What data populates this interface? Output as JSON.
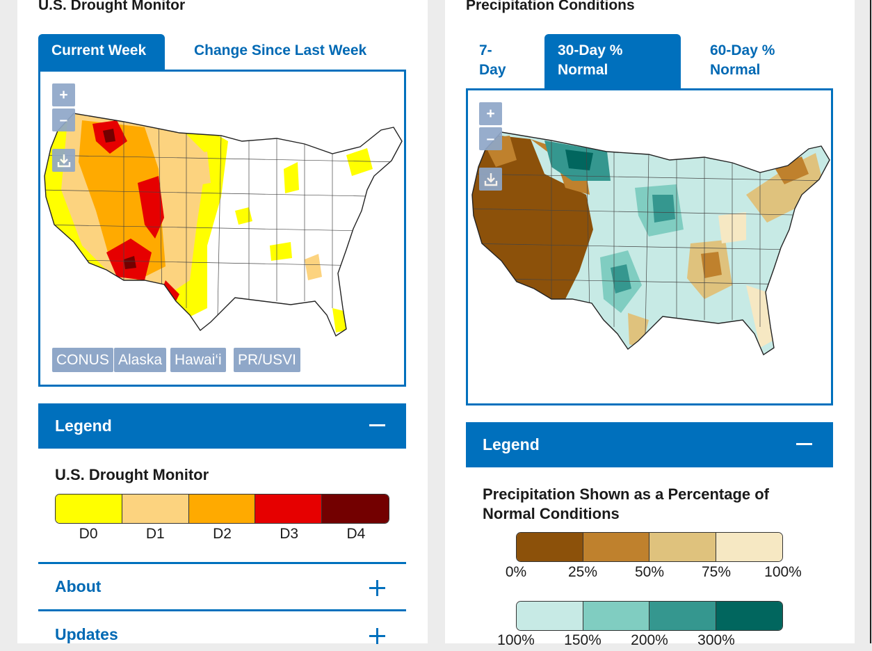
{
  "drought_panel": {
    "title": "U.S. Drought Monitor",
    "tabs": [
      {
        "label": "Current Week",
        "active": true
      },
      {
        "label": "Change Since Last Week",
        "active": false
      }
    ],
    "map_controls": {
      "zoom_in": "+",
      "zoom_out": "–"
    },
    "region_buttons": [
      "CONUS",
      "Alaska",
      "Hawai‘i",
      "PR/USVI"
    ],
    "legend": {
      "header": "Legend",
      "title": "U.S. Drought Monitor",
      "categories": [
        {
          "label": "D0",
          "color": "#ffff00"
        },
        {
          "label": "D1",
          "color": "#fcd37f"
        },
        {
          "label": "D2",
          "color": "#ffaa00"
        },
        {
          "label": "D3",
          "color": "#e60000"
        },
        {
          "label": "D4",
          "color": "#730000"
        }
      ]
    },
    "accordions": [
      "About",
      "Updates"
    ]
  },
  "precip_panel": {
    "title": "Precipitation Conditions",
    "tabs": [
      {
        "label_line1": "7-",
        "label_line2": "Day",
        "active": false
      },
      {
        "label_line1": "30-Day %",
        "label_line2": "Normal",
        "active": true
      },
      {
        "label_line1": "60-Day %",
        "label_line2": "Normal",
        "active": false
      }
    ],
    "map_controls": {
      "zoom_in": "+",
      "zoom_out": "–"
    },
    "legend": {
      "header": "Legend",
      "title_line1": "Precipitation Shown as a Percentage of",
      "title_line2": "Normal Conditions",
      "dry_scale": {
        "colors": [
          "#8c510a",
          "#bf812d",
          "#dfc27d",
          "#f6e8c3"
        ],
        "ticks": [
          "0%",
          "25%",
          "50%",
          "75%",
          "100%"
        ]
      },
      "wet_scale": {
        "colors": [
          "#c7eae5",
          "#80cdc1",
          "#35978f",
          "#01665e"
        ],
        "ticks": [
          "100%",
          "150%",
          "200%",
          "300%"
        ]
      }
    }
  }
}
